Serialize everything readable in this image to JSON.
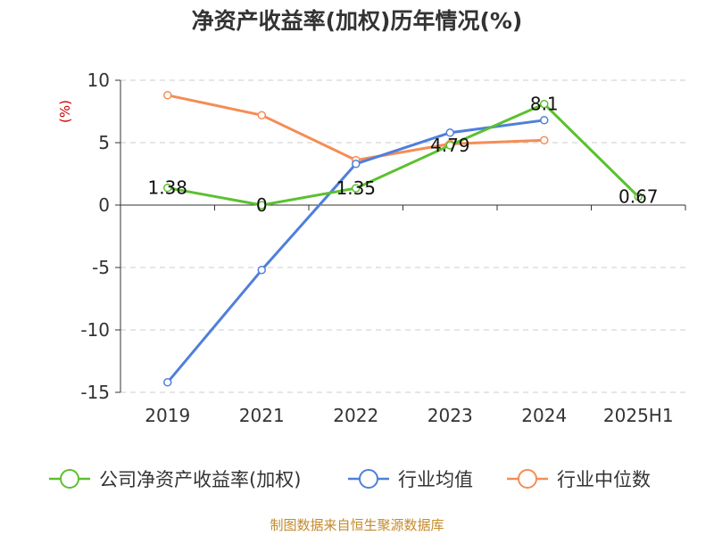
{
  "chart_data": {
    "type": "line",
    "title": "净资产收益率(加权)历年情况(%)",
    "ylabel": "(%)",
    "xlabel": "",
    "categories": [
      "2019",
      "2021",
      "2022",
      "2023",
      "2024",
      "2025H1"
    ],
    "ylim": [
      -15,
      10
    ],
    "yticks": [
      10,
      5,
      0,
      -5,
      -10,
      -15
    ],
    "grid": true,
    "legend_position": "bottom",
    "series": [
      {
        "name": "公司净资产收益率(加权)",
        "color": "#5cc031",
        "values": [
          1.38,
          0,
          1.35,
          4.79,
          8.1,
          0.67
        ],
        "labels": [
          "1.38",
          "0",
          "1.35",
          "4.79",
          "8.1",
          "0.67"
        ]
      },
      {
        "name": "行业均值",
        "color": "#4f7fdc",
        "values": [
          -14.2,
          -5.2,
          3.3,
          5.8,
          6.8,
          null
        ]
      },
      {
        "name": "行业中位数",
        "color": "#f58d55",
        "values": [
          8.8,
          7.2,
          3.6,
          4.9,
          5.2,
          null
        ]
      }
    ]
  },
  "footer": {
    "source": "制图数据来自恒生聚源数据库"
  }
}
